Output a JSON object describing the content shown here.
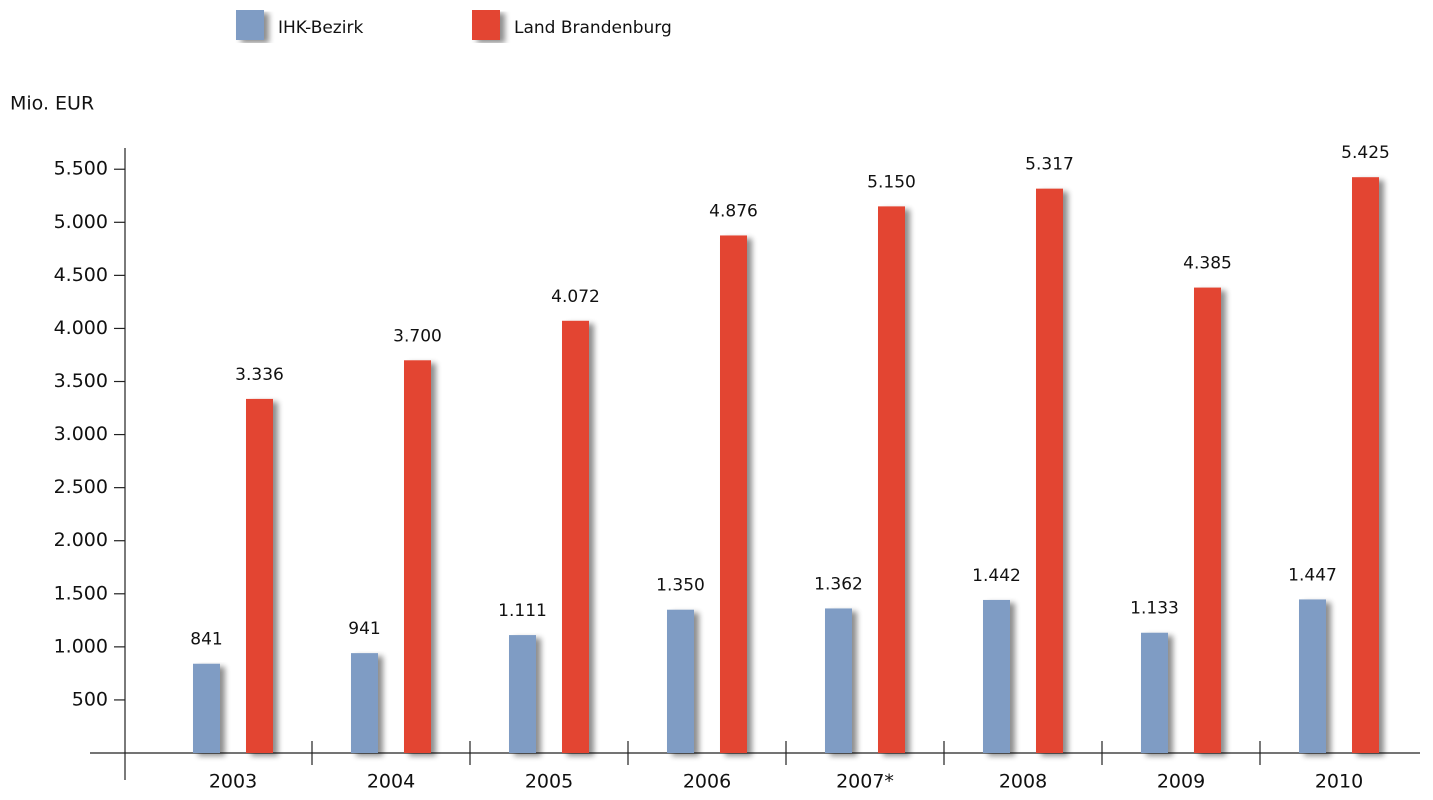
{
  "chart_data": {
    "type": "bar",
    "y_label": "Mio. EUR",
    "categories": [
      "2003",
      "2004",
      "2005",
      "2006",
      "2007*",
      "2008",
      "2009",
      "2010"
    ],
    "series": [
      {
        "name": "IHK-Bezirk",
        "color": "#7f9cc4",
        "values": [
          841,
          941,
          1111,
          1350,
          1362,
          1442,
          1133,
          1447
        ],
        "value_labels": [
          "841",
          "941",
          "1.111",
          "1.350",
          "1.362",
          "1.442",
          "1.133",
          "1.447"
        ]
      },
      {
        "name": "Land Brandenburg",
        "color": "#e34532",
        "values": [
          3336,
          3700,
          4072,
          4876,
          5150,
          5317,
          4385,
          5425
        ],
        "value_labels": [
          "3.336",
          "3.700",
          "4.072",
          "4.876",
          "5.150",
          "5.317",
          "4.385",
          "5.425"
        ]
      }
    ],
    "ylim": [
      0,
      5700
    ],
    "yticks": [
      500,
      {
        "value": 1000,
        "label": "1.000"
      },
      {
        "value": 1500,
        "label": "1.500"
      },
      {
        "value": 2000,
        "label": "2.000"
      },
      {
        "value": 2500,
        "label": "2.500"
      },
      {
        "value": 3000,
        "label": "3.000"
      },
      {
        "value": 3500,
        "label": "3.500"
      },
      {
        "value": 4000,
        "label": "4.000"
      },
      {
        "value": 4500,
        "label": "4.500"
      },
      {
        "value": 5000,
        "label": "5.000"
      },
      {
        "value": 5500,
        "label": "5.500"
      }
    ],
    "grid": false,
    "legend": "top"
  }
}
